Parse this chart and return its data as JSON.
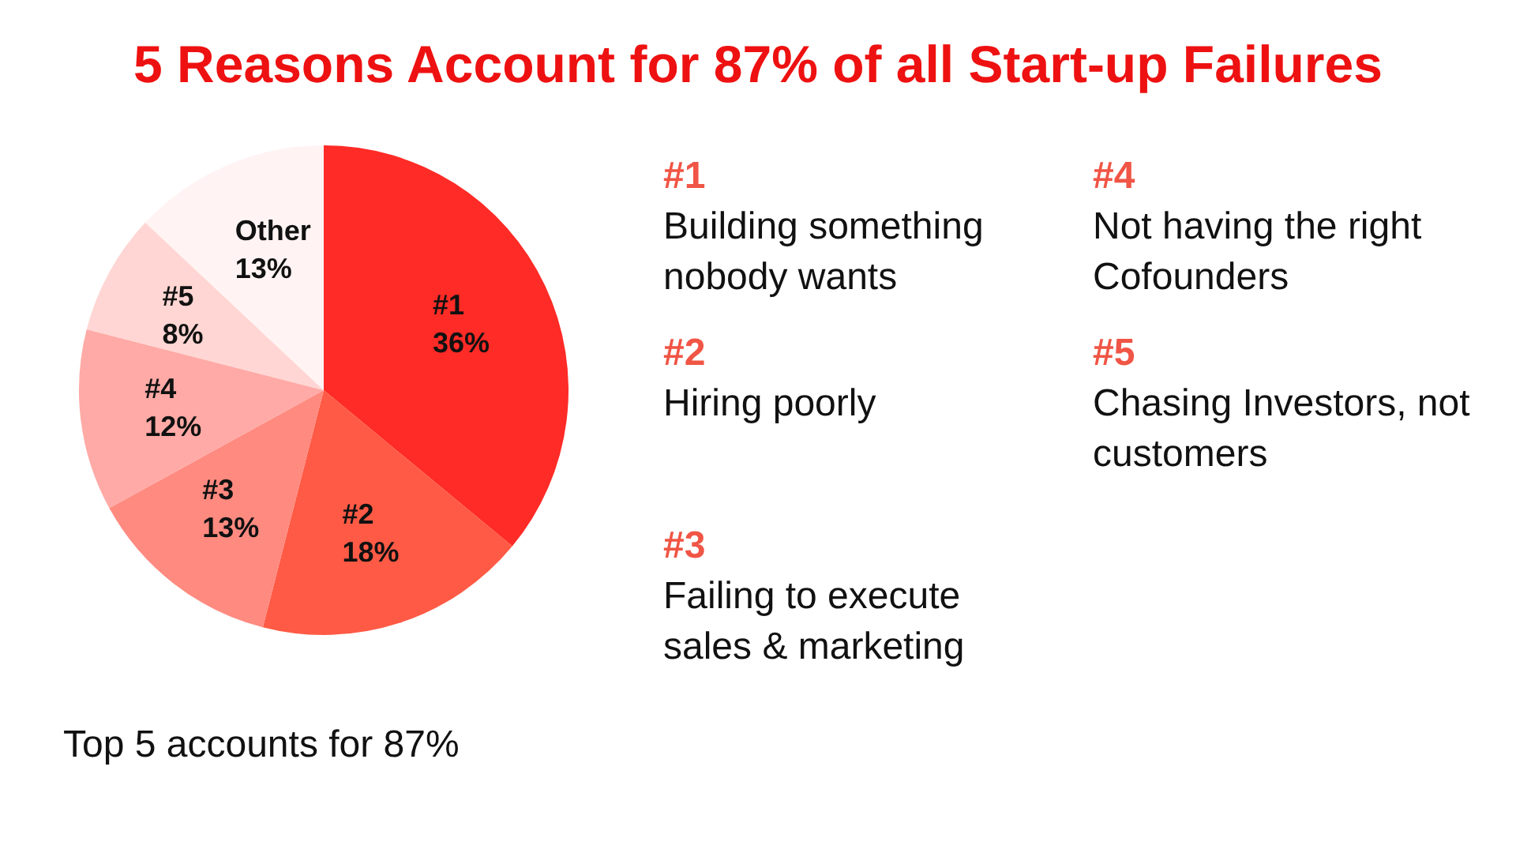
{
  "chart_data": {
    "type": "pie",
    "title": "5 Reasons Account for 87% of all Start-up Failures",
    "categories": [
      "#1",
      "#2",
      "#3",
      "#4",
      "#5",
      "Other"
    ],
    "values": [
      36,
      18,
      13,
      12,
      8,
      13
    ],
    "value_labels": [
      "36%",
      "18%",
      "13%",
      "12%",
      "8%",
      "13%"
    ],
    "colors": [
      "#ff2b26",
      "#ff5a45",
      "#ff8a80",
      "#ffaaa6",
      "#ffd6d3",
      "#fff4f3"
    ],
    "legend": false,
    "annotations": [
      "#1",
      "Building something nobody wants",
      "#2",
      "Hiring poorly",
      "#3",
      "Failing to execute sales & marketing",
      "#4",
      "Not having the right Cofounders",
      "#5",
      "Chasing Investors, not customers",
      "Top 5 accounts for 87%"
    ]
  }
}
